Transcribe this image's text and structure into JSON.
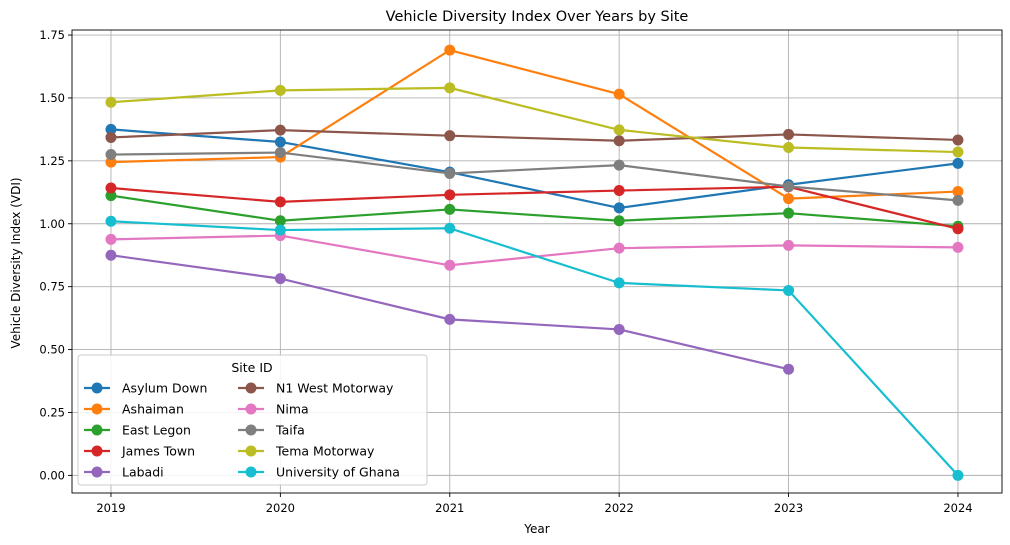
{
  "chart_data": {
    "type": "line",
    "title": "Vehicle Diversity Index Over Years by Site",
    "xlabel": "Year",
    "ylabel": "Vehicle Diversity Index (VDI)",
    "x": [
      2019,
      2020,
      2021,
      2022,
      2023,
      2024
    ],
    "x_tick_labels": [
      "2019",
      "2020",
      "2021",
      "2022",
      "2023",
      "2024"
    ],
    "xlim": [
      2018.77,
      2024.26
    ],
    "ylim": [
      -0.07,
      1.77
    ],
    "y_ticks": [
      0.0,
      0.25,
      0.5,
      0.75,
      1.0,
      1.25,
      1.5,
      1.75
    ],
    "y_tick_labels": [
      "0.00",
      "0.25",
      "0.50",
      "0.75",
      "1.00",
      "1.25",
      "1.50",
      "1.75"
    ],
    "grid": true,
    "legend_title": "Site ID",
    "legend_position": "lower-left",
    "series": [
      {
        "name": "Asylum Down",
        "color": "#1f77b4",
        "values": [
          1.375,
          1.325,
          1.205,
          1.063,
          1.155,
          1.24
        ]
      },
      {
        "name": "Ashaiman",
        "color": "#ff7f0e",
        "values": [
          1.245,
          1.265,
          1.69,
          1.515,
          1.1,
          1.128
        ]
      },
      {
        "name": "East Legon",
        "color": "#2ca02c",
        "values": [
          1.112,
          1.012,
          1.057,
          1.012,
          1.042,
          0.99
        ]
      },
      {
        "name": "James Town",
        "color": "#d62728",
        "values": [
          1.142,
          1.087,
          1.115,
          1.132,
          1.147,
          0.98
        ]
      },
      {
        "name": "Labadi",
        "color": "#9467bd",
        "values": [
          0.875,
          0.782,
          0.62,
          0.58,
          0.422,
          null
        ]
      },
      {
        "name": "N1 West Motorway",
        "color": "#8c564b",
        "values": [
          1.343,
          1.372,
          1.35,
          1.33,
          1.355,
          1.333
        ]
      },
      {
        "name": "Nima",
        "color": "#e377c2",
        "values": [
          0.938,
          0.953,
          0.835,
          0.903,
          0.914,
          0.906
        ]
      },
      {
        "name": "Taifa",
        "color": "#7f7f7f",
        "values": [
          1.275,
          1.283,
          1.2,
          1.233,
          1.148,
          1.093
        ]
      },
      {
        "name": "Tema Motorway",
        "color": "#bcbd22",
        "values": [
          1.483,
          1.53,
          1.54,
          1.373,
          1.303,
          1.285
        ]
      },
      {
        "name": "University of Ghana",
        "color": "#17becf",
        "values": [
          1.01,
          0.975,
          0.982,
          0.765,
          0.735,
          0.0
        ]
      }
    ]
  }
}
